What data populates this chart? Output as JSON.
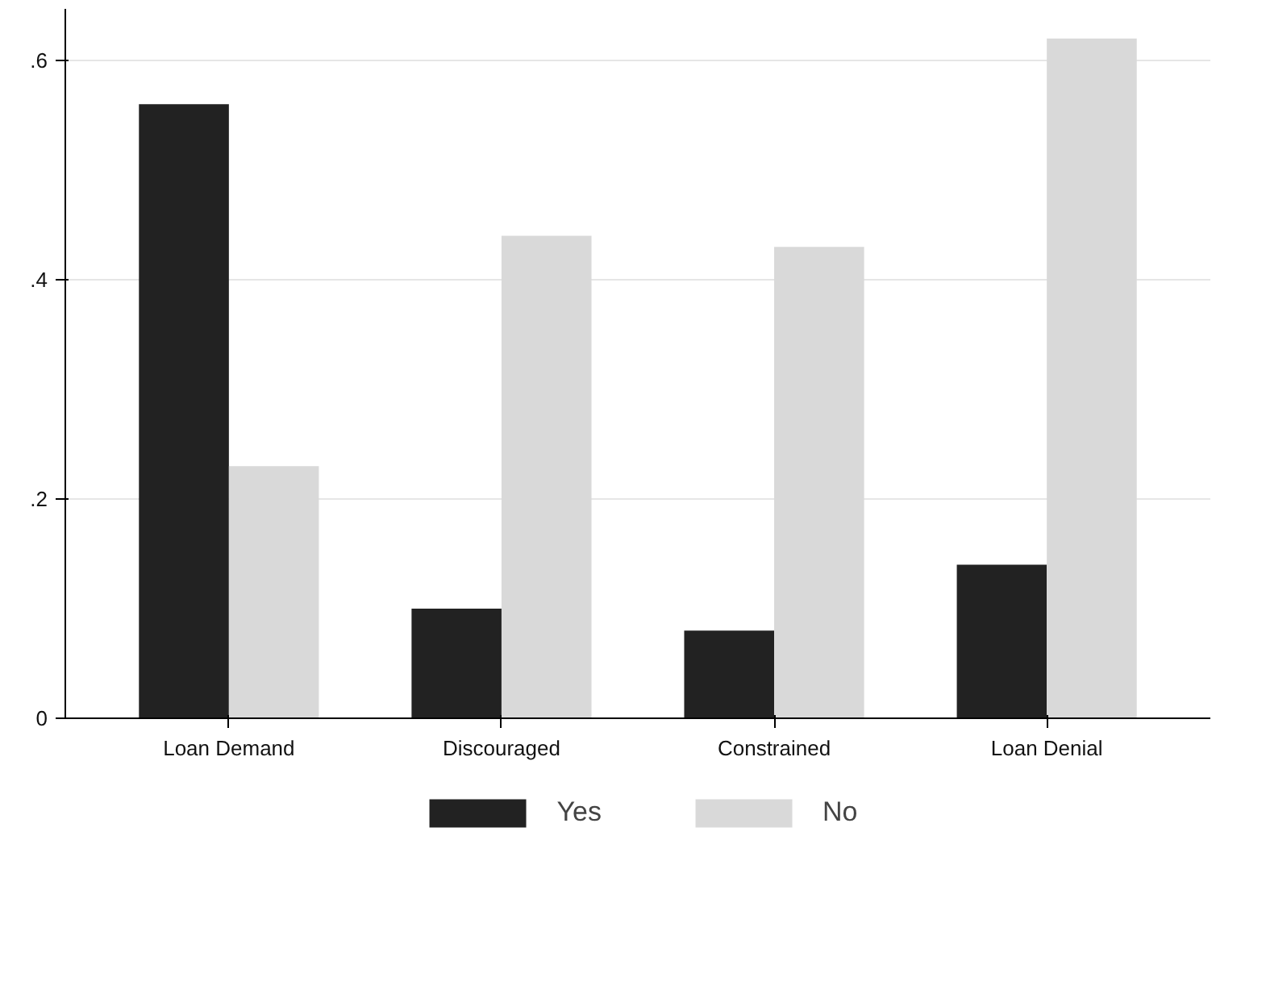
{
  "chart_data": {
    "type": "bar",
    "categories": [
      "Loan Demand",
      "Discouraged",
      "Constrained",
      "Loan Denial"
    ],
    "series": [
      {
        "name": "Yes",
        "color": "#222222",
        "values": [
          0.56,
          0.1,
          0.08,
          0.14
        ]
      },
      {
        "name": "No",
        "color": "#d9d9d9",
        "values": [
          0.23,
          0.44,
          0.43,
          0.62
        ]
      }
    ],
    "ylim": [
      0,
      0.647
    ],
    "yticks": [
      0,
      {
        "value": 0.2,
        "label": ".2"
      },
      {
        "value": 0.4,
        "label": ".4"
      },
      {
        "value": 0.6,
        "label": ".6"
      }
    ],
    "grid": "y",
    "legend": "bottom"
  }
}
